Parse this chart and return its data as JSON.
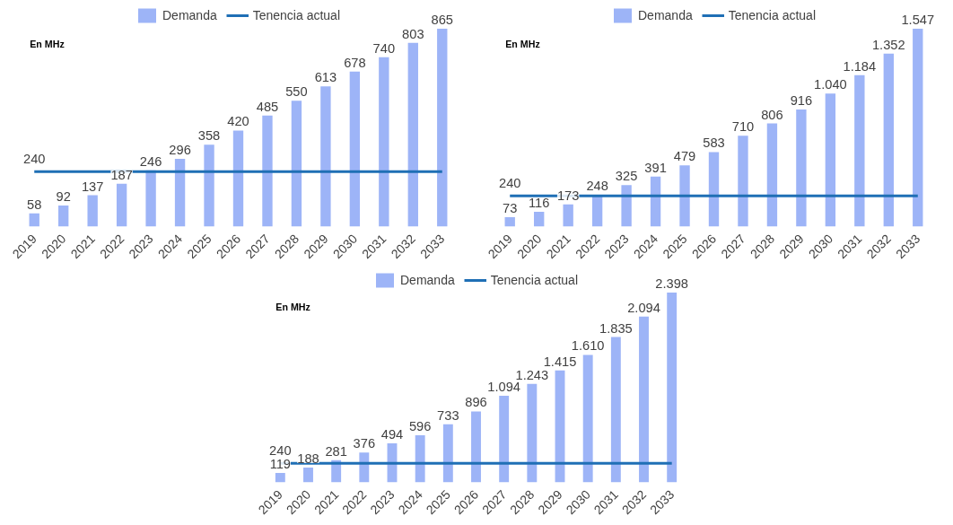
{
  "chart_data": [
    {
      "type": "bar",
      "subtitle": "En MHz",
      "legend": "top",
      "tick_labels": "x",
      "categories": [
        "2019",
        "2020",
        "2021",
        "2022",
        "2023",
        "2024",
        "2025",
        "2026",
        "2027",
        "2028",
        "2029",
        "2030",
        "2031",
        "2032",
        "2033"
      ],
      "series": [
        {
          "name": "Demanda",
          "color": "#9db4f7",
          "values": [
            58,
            92,
            137,
            187,
            246,
            296,
            358,
            420,
            485,
            550,
            613,
            678,
            740,
            803,
            865
          ],
          "value_labels": [
            "58",
            "92",
            "137",
            "187",
            "246",
            "296",
            "358",
            "420",
            "485",
            "550",
            "613",
            "678",
            "740",
            "803",
            "865"
          ]
        },
        {
          "name": "Tenencia actual",
          "type": "line",
          "color": "#1f6fb5",
          "values": [
            240,
            240,
            240,
            240,
            240,
            240,
            240,
            240,
            240,
            240,
            240,
            240,
            240,
            240,
            240
          ],
          "value_labels": [
            "240",
            null,
            null,
            null,
            null,
            null,
            null,
            null,
            null,
            null,
            null,
            null,
            null,
            null,
            null
          ]
        }
      ]
    },
    {
      "type": "bar",
      "subtitle": "En MHz",
      "legend": "top",
      "tick_labels": "x",
      "categories": [
        "2019",
        "2020",
        "2021",
        "2022",
        "2023",
        "2024",
        "2025",
        "2026",
        "2027",
        "2028",
        "2029",
        "2030",
        "2031",
        "2032",
        "2033"
      ],
      "series": [
        {
          "name": "Demanda",
          "color": "#9db4f7",
          "values": [
            73,
            116,
            173,
            248,
            325,
            391,
            479,
            583,
            710,
            806,
            916,
            1040,
            1184,
            1352,
            1547
          ],
          "value_labels": [
            "73",
            "116",
            "173",
            "248",
            "325",
            "391",
            "479",
            "583",
            "710",
            "806",
            "916",
            "1.040",
            "1.184",
            "1.352",
            "1.547"
          ]
        },
        {
          "name": "Tenencia actual",
          "type": "line",
          "color": "#1f6fb5",
          "values": [
            240,
            240,
            240,
            240,
            240,
            240,
            240,
            240,
            240,
            240,
            240,
            240,
            240,
            240,
            240
          ],
          "value_labels": [
            "240",
            null,
            null,
            null,
            null,
            null,
            null,
            null,
            null,
            null,
            null,
            null,
            null,
            null,
            null
          ]
        }
      ]
    },
    {
      "type": "bar",
      "subtitle": "En MHz",
      "legend": "top",
      "tick_labels": "x",
      "categories": [
        "2019",
        "2020",
        "2021",
        "2022",
        "2023",
        "2024",
        "2025",
        "2026",
        "2027",
        "2028",
        "2029",
        "2030",
        "2031",
        "2032",
        "2033"
      ],
      "series": [
        {
          "name": "Demanda",
          "color": "#9db4f7",
          "values": [
            119,
            188,
            281,
            376,
            494,
            596,
            733,
            896,
            1094,
            1243,
            1415,
            1610,
            1835,
            2094,
            2398
          ],
          "value_labels": [
            "119",
            "188",
            "281",
            "376",
            "494",
            "596",
            "733",
            "896",
            "1.094",
            "1.243",
            "1.415",
            "1.610",
            "1.835",
            "2.094",
            "2.398"
          ]
        },
        {
          "name": "Tenencia actual",
          "type": "line",
          "color": "#1f6fb5",
          "values": [
            240,
            240,
            240,
            240,
            240,
            240,
            240,
            240,
            240,
            240,
            240,
            240,
            240,
            240,
            240
          ],
          "value_labels": [
            "240",
            null,
            null,
            null,
            null,
            null,
            null,
            null,
            null,
            null,
            null,
            null,
            null,
            null,
            null
          ]
        }
      ]
    }
  ]
}
